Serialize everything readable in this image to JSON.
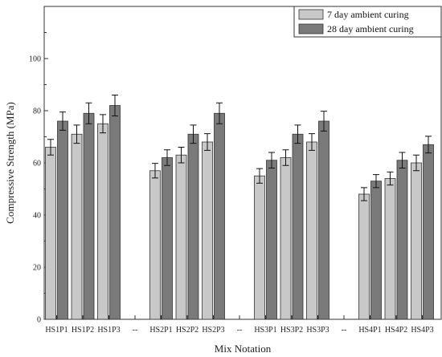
{
  "chart_data": {
    "type": "bar",
    "xlabel": "Mix Notation",
    "ylabel": "Compressive Strength (MPa)",
    "ylim": [
      0,
      120
    ],
    "yticks": [
      0,
      20,
      40,
      60,
      80,
      100
    ],
    "grid": false,
    "legend_position": "top-right",
    "categories": [
      "HS1P1",
      "HS1P2",
      "HS1P3",
      "--",
      "HS2P1",
      "HS2P2",
      "HS2P3",
      "--",
      "HS3P1",
      "HS3P2",
      "HS3P3",
      "--",
      "HS4P1",
      "HS4P2",
      "HS4P3"
    ],
    "series": [
      {
        "name": "7 day ambient curing",
        "color": "#c8c8c8",
        "values": [
          66,
          71,
          75,
          null,
          57,
          63,
          68,
          null,
          55,
          62,
          68,
          null,
          48,
          54,
          60
        ],
        "errors": [
          3,
          3.5,
          3.5,
          null,
          2.8,
          3,
          3.2,
          null,
          2.8,
          3,
          3.2,
          null,
          2.5,
          2.5,
          3
        ]
      },
      {
        "name": "28 day ambient curing",
        "color": "#7a7a7a",
        "values": [
          76,
          79,
          82,
          null,
          62,
          71,
          79,
          null,
          61,
          71,
          76,
          null,
          53,
          61,
          67
        ],
        "errors": [
          3.5,
          4,
          4,
          null,
          3,
          3.5,
          4,
          null,
          3,
          3.5,
          3.8,
          null,
          2.5,
          3,
          3.2
        ]
      }
    ]
  }
}
